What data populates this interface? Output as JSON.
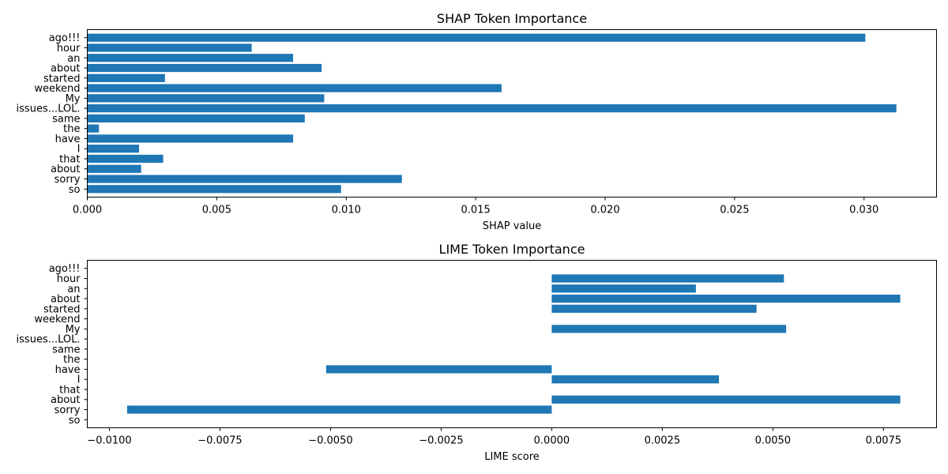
{
  "chart_data": [
    {
      "type": "bar",
      "orientation": "horizontal",
      "title": "SHAP Token Importance",
      "xlabel": "SHAP value",
      "ylabel": "",
      "xlim": [
        0,
        0.0328
      ],
      "xticks": [
        "0.000",
        "0.005",
        "0.010",
        "0.015",
        "0.020",
        "0.025",
        "0.030"
      ],
      "xtick_values": [
        0,
        0.005,
        0.01,
        0.015,
        0.02,
        0.025,
        0.03
      ],
      "categories": [
        "so",
        "sorry",
        "about",
        "that",
        "I",
        "have",
        "the",
        "same",
        "issues...LOL.",
        "My",
        "weekend",
        "started",
        "about",
        "an",
        "hour",
        "ago!!!"
      ],
      "values": [
        0.0098,
        0.01215,
        0.00208,
        0.00293,
        0.002,
        0.00795,
        0.00045,
        0.0084,
        0.03125,
        0.00915,
        0.016,
        0.003,
        0.00905,
        0.00795,
        0.00635,
        0.03005
      ],
      "color": "#1f77b4",
      "grid": false,
      "legend": "none"
    },
    {
      "type": "bar",
      "orientation": "horizontal",
      "title": "LIME Token Importance",
      "xlabel": "LIME score",
      "ylabel": "",
      "xlim": [
        -0.0105,
        0.0087
      ],
      "xticks": [
        "−0.0100",
        "−0.0075",
        "−0.0050",
        "−0.0025",
        "0.0000",
        "0.0025",
        "0.0050",
        "0.0075"
      ],
      "xtick_values": [
        -0.01,
        -0.0075,
        -0.005,
        -0.0025,
        0,
        0.0025,
        0.005,
        0.0075
      ],
      "categories": [
        "so",
        "sorry",
        "about",
        "that",
        "I",
        "have",
        "the",
        "same",
        "issues...LOL.",
        "My",
        "weekend",
        "started",
        "about",
        "an",
        "hour",
        "ago!!!"
      ],
      "values": [
        0,
        -0.0096,
        0.00788,
        0,
        0.00378,
        -0.0051,
        0,
        0,
        0,
        0.0053,
        0,
        0.00463,
        0.00788,
        0.00326,
        0.00525,
        0
      ],
      "color": "#1f77b4",
      "grid": false,
      "legend": "none"
    }
  ]
}
